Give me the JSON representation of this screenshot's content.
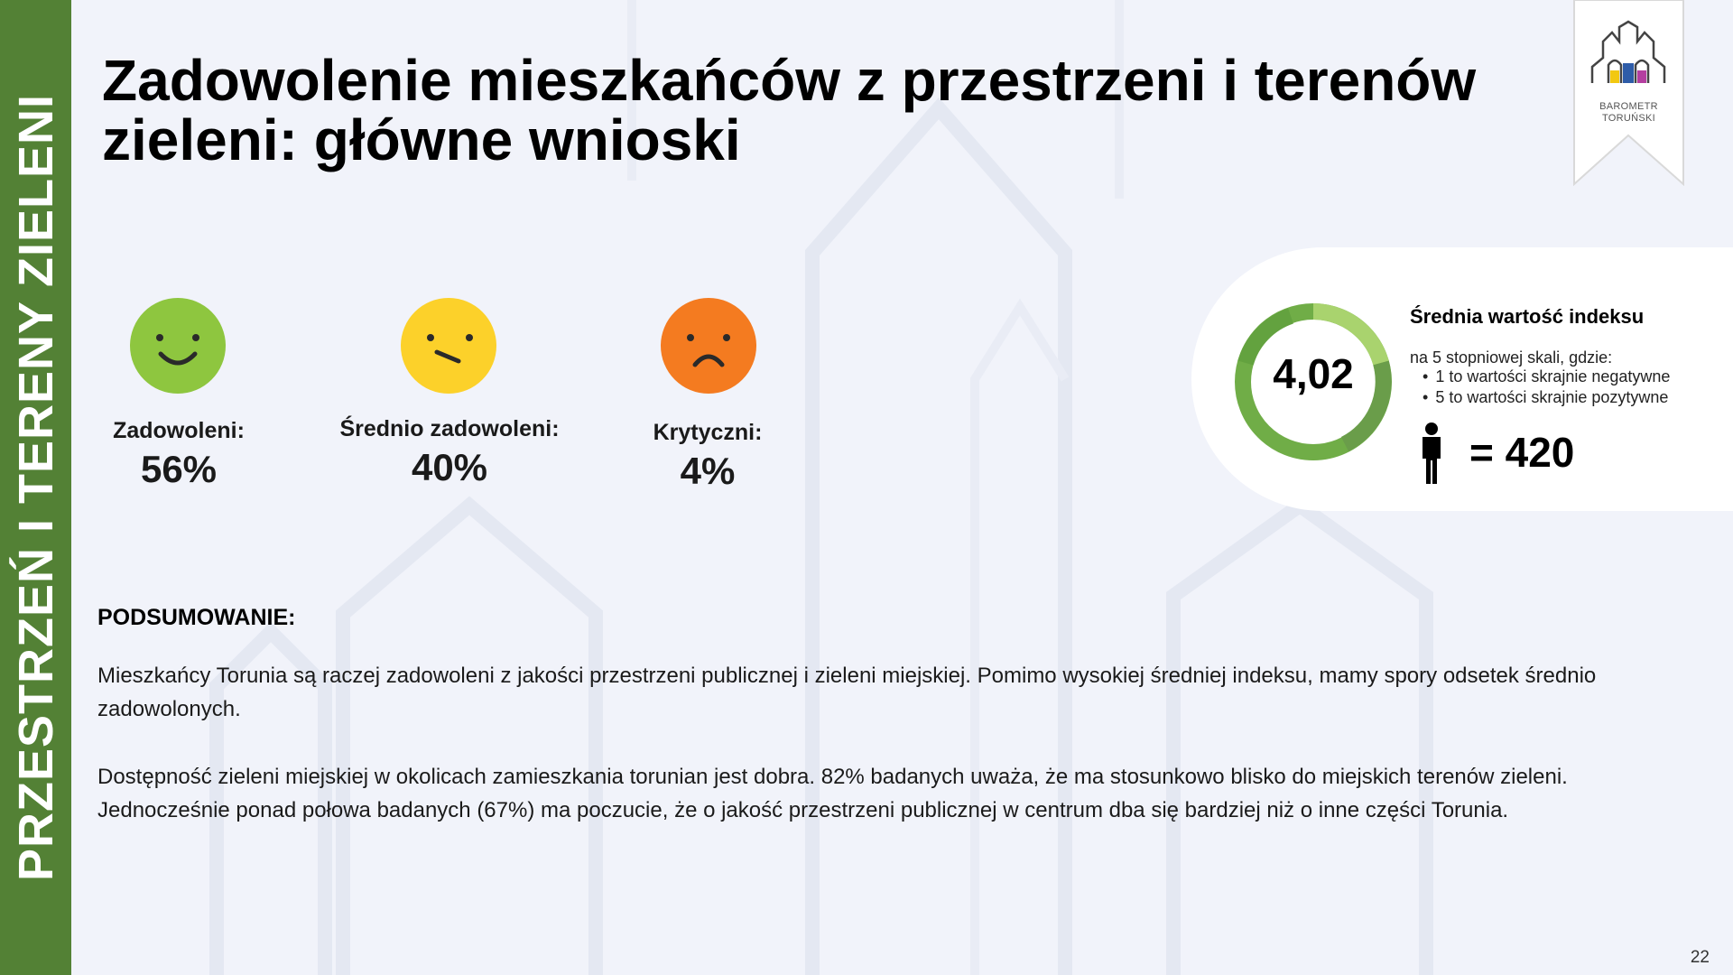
{
  "sidebar": {
    "label": "PRZESTRZEŃ I TERENY ZIELENI"
  },
  "title": {
    "line1": "Zadowolenie mieszkańców z przestrzeni i terenów",
    "line2": "zieleni: główne wnioski"
  },
  "logo": {
    "line1": "BAROMETR",
    "line2": "TORUŃSKI"
  },
  "satisfaction": [
    {
      "label": "Zadowoleni:",
      "value": "56%",
      "face": "happy-face-icon",
      "color": "#8ec63f"
    },
    {
      "label": "Średnio zadowoleni:",
      "value": "40%",
      "face": "neutral-face-icon",
      "color": "#fcd12a"
    },
    {
      "label": "Krytyczni:",
      "value": "4%",
      "face": "sad-face-icon",
      "color": "#f47b20"
    }
  ],
  "index": {
    "value": "4,02",
    "title": "Średnia wartość indeksu",
    "subtitle": "na 5 stopniowej skali, gdzie:",
    "scale": [
      "1 to wartości skrajnie negatywne",
      "5 to wartości skrajnie pozytywne"
    ],
    "sample": "= 420",
    "ring_colors": [
      "#70ad47",
      "#a9d36e"
    ]
  },
  "summary": {
    "heading": "PODSUMOWANIE:",
    "paragraph1": "Mieszkańcy Torunia są raczej zadowoleni z jakości przestrzeni publicznej i zieleni miejskiej. Pomimo wysokiej średniej indeksu, mamy spory odsetek średnio zadowolonych.",
    "paragraph2": "Dostępność zieleni miejskiej w okolicach zamieszkania torunian jest dobra. 82% badanych uważa, że ma stosunkowo blisko do miejskich terenów zieleni. Jednocześnie ponad połowa badanych (67%) ma poczucie, że o jakość przestrzeni publicznej w centrum dba się bardziej niż o inne części Torunia."
  },
  "page_number": "22"
}
